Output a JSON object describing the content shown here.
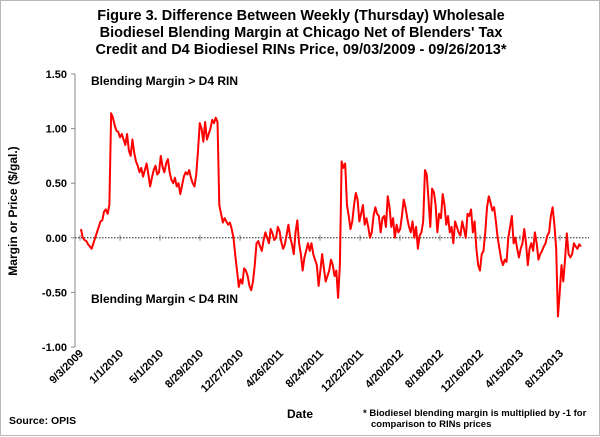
{
  "chart_data": {
    "type": "line",
    "title_lines": [
      "Figure 3. Difference Between Weekly (Thursday) Wholesale",
      "Biodiesel Blending Margin at Chicago Net of Blenders' Tax",
      "Credit and D4 Biodiesel RINs Price, 09/03/2009 - 09/26/2013*"
    ],
    "xlabel": "Date",
    "ylabel": "Margin or Price ($/gal.)",
    "ylim": [
      -1.0,
      1.5
    ],
    "yticks": [
      "1.50",
      "1.00",
      "0.50",
      "0.00",
      "-0.50",
      "-1.00"
    ],
    "ytick_values": [
      1.5,
      1.0,
      0.5,
      0.0,
      -0.5,
      -1.0
    ],
    "xticks": [
      "9/3/2009",
      "1/1/2010",
      "5/1/2010",
      "8/29/2010",
      "12/27/2010",
      "4/26/2011",
      "8/24/2011",
      "12/22/2011",
      "4/20/2012",
      "8/18/2012",
      "12/16/2012",
      "4/15/2013",
      "8/13/2013"
    ],
    "annotations": {
      "upper": "Blending Margin > D4 RIN",
      "lower": "Blending Margin < D4 RIN"
    },
    "line_color": "#ff0000",
    "series": [
      {
        "values": [
          0.08,
          0.0,
          -0.02,
          -0.03,
          -0.06,
          -0.08,
          -0.1,
          -0.05,
          0.0,
          0.05,
          0.1,
          0.15,
          0.16,
          0.24,
          0.26,
          0.22,
          0.3,
          1.14,
          1.1,
          1.03,
          0.98,
          0.97,
          0.92,
          0.95,
          0.9,
          0.85,
          0.95,
          0.8,
          0.75,
          0.9,
          0.78,
          0.7,
          0.66,
          0.6,
          0.64,
          0.56,
          0.62,
          0.68,
          0.58,
          0.47,
          0.55,
          0.62,
          0.66,
          0.58,
          0.6,
          0.75,
          0.65,
          0.6,
          0.68,
          0.72,
          0.6,
          0.53,
          0.5,
          0.55,
          0.47,
          0.5,
          0.4,
          0.48,
          0.56,
          0.6,
          0.58,
          0.62,
          0.55,
          0.5,
          0.47,
          0.58,
          0.8,
          1.05,
          1.0,
          0.88,
          1.06,
          0.9,
          0.95,
          1.0,
          1.08,
          1.05,
          1.1,
          1.06,
          0.3,
          0.22,
          0.14,
          0.18,
          0.15,
          0.12,
          0.14,
          0.08,
          0.0,
          -0.16,
          -0.3,
          -0.45,
          -0.38,
          -0.42,
          -0.28,
          -0.3,
          -0.35,
          -0.44,
          -0.48,
          -0.4,
          -0.25,
          -0.05,
          -0.03,
          -0.08,
          -0.12,
          -0.02,
          0.05,
          0.0,
          -0.05,
          0.08,
          0.04,
          -0.02,
          0.0,
          0.1,
          0.06,
          -0.04,
          -0.1,
          -0.06,
          0.03,
          0.12,
          0.0,
          -0.06,
          -0.15,
          0.05,
          0.16,
          -0.05,
          -0.15,
          -0.3,
          -0.18,
          -0.12,
          -0.05,
          -0.12,
          -0.05,
          -0.15,
          -0.2,
          -0.25,
          -0.44,
          -0.3,
          -0.15,
          -0.28,
          -0.4,
          -0.35,
          -0.3,
          -0.2,
          -0.25,
          -0.35,
          -0.3,
          -0.55,
          -0.25,
          0.7,
          0.64,
          0.68,
          0.3,
          0.2,
          0.08,
          0.15,
          0.3,
          0.41,
          0.35,
          0.15,
          0.22,
          0.3,
          0.12,
          0.18,
          0.1,
          0.0,
          0.05,
          0.2,
          0.28,
          0.22,
          0.2,
          0.05,
          0.18,
          0.2,
          0.1,
          0.38,
          0.28,
          0.1,
          0.18,
          0.0,
          0.12,
          0.05,
          0.08,
          0.2,
          0.35,
          0.28,
          0.18,
          0.1,
          0.05,
          0.15,
          0.0,
          0.1,
          -0.1,
          0.02,
          0.05,
          0.15,
          0.62,
          0.58,
          0.35,
          0.1,
          0.45,
          0.42,
          0.3,
          0.05,
          0.22,
          0.18,
          0.4,
          0.3,
          0.12,
          0.2,
          0.05,
          0.1,
          -0.05,
          0.15,
          0.1,
          0.05,
          0.02,
          0.15,
          0.08,
          0.0,
          0.22,
          0.2,
          0.26,
          0.05,
          0.15,
          -0.1,
          -0.25,
          -0.3,
          -0.15,
          -0.12,
          0.05,
          0.28,
          0.38,
          0.32,
          0.25,
          0.28,
          0.15,
          0.0,
          -0.1,
          -0.2,
          -0.25,
          -0.2,
          -0.22,
          0.0,
          0.1,
          0.2,
          -0.05,
          0.0,
          -0.1,
          -0.18,
          -0.1,
          -0.05,
          0.08,
          -0.05,
          -0.25,
          -0.1,
          -0.05,
          -0.12,
          0.05,
          -0.05,
          -0.2,
          -0.15,
          -0.12,
          -0.08,
          -0.05,
          0.02,
          0.05,
          0.2,
          0.28,
          0.12,
          -0.1,
          -0.72,
          -0.5,
          -0.25,
          -0.4,
          -0.2,
          0.04,
          -0.15,
          -0.18,
          -0.15,
          -0.05,
          -0.08,
          -0.1,
          -0.06,
          -0.08
        ]
      }
    ]
  },
  "source": "Source: OPIS",
  "footnote_lines": [
    "* Biodiesel blending margin is multiplied by -1 for",
    "comparison to RINs prices"
  ]
}
